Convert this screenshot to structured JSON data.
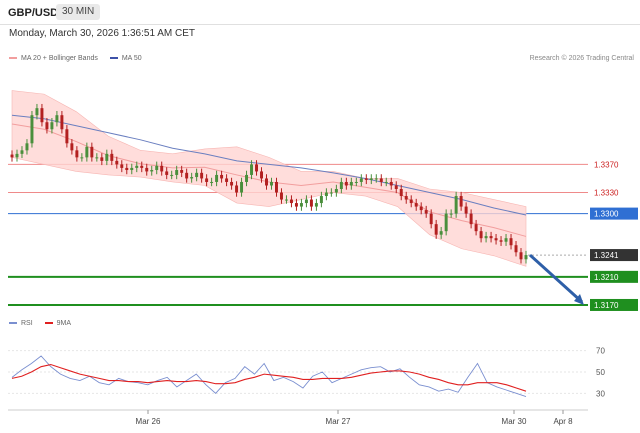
{
  "header": {
    "symbol": "GBP/USD",
    "timeframe": "30 MIN",
    "datetime": "Monday, March 30, 2026 1:36:51 AM CET"
  },
  "legend": {
    "ma20_label": "MA 20 + Bollinger Bands",
    "ma50_label": "MA 50",
    "credit": "Research © 2026 Trading Central"
  },
  "rsi_legend": {
    "rsi_label": "RSI",
    "ma_label": "9MA"
  },
  "colors": {
    "up_candle": "#4a8f3c",
    "down_candle": "#b32020",
    "bb_fill": "#ffd4d2",
    "ma20": "#f29e9e",
    "ma50": "#6a7fc0",
    "resistance": "#ef8a8a",
    "pivot": "#2f6fd3",
    "support": "#1f8f1f",
    "current": "#333333",
    "arrow": "#2e5fa8",
    "rsi": "#7a8fd0",
    "rsi_ma": "#e02020"
  },
  "chart_data": [
    {
      "type": "candlestick",
      "title": "GBP/USD",
      "y_range": [
        1.316,
        1.351
      ],
      "x_labels": [
        "Mar 26",
        "Mar 27",
        "Mar 30",
        "Apr 8"
      ],
      "levels": [
        {
          "value": 1.337,
          "label": "1.3370",
          "kind": "resistance"
        },
        {
          "value": 1.333,
          "label": "1.3330",
          "kind": "resistance"
        },
        {
          "value": 1.33,
          "label": "1.3300",
          "kind": "pivot"
        },
        {
          "value": 1.3241,
          "label": "1.3241",
          "kind": "current"
        },
        {
          "value": 1.321,
          "label": "1.3210",
          "kind": "support"
        },
        {
          "value": 1.317,
          "label": "1.3170",
          "kind": "support"
        }
      ],
      "projection": {
        "from": 1.3241,
        "to": 1.317
      },
      "close_series": [
        1.338,
        1.3385,
        1.339,
        1.34,
        1.344,
        1.345,
        1.343,
        1.342,
        1.343,
        1.344,
        1.342,
        1.34,
        1.339,
        1.338,
        1.338,
        1.3395,
        1.338,
        1.338,
        1.3375,
        1.3385,
        1.3375,
        1.337,
        1.3365,
        1.3362,
        1.3365,
        1.3368,
        1.3365,
        1.336,
        1.3362,
        1.3368,
        1.336,
        1.3355,
        1.3355,
        1.3362,
        1.3358,
        1.335,
        1.3352,
        1.3358,
        1.335,
        1.3345,
        1.3345,
        1.3355,
        1.335,
        1.3345,
        1.334,
        1.333,
        1.3345,
        1.3355,
        1.337,
        1.336,
        1.335,
        1.334,
        1.3345,
        1.333,
        1.332,
        1.332,
        1.3315,
        1.331,
        1.3315,
        1.332,
        1.331,
        1.3315,
        1.3325,
        1.333,
        1.333,
        1.3335,
        1.3345,
        1.334,
        1.3345,
        1.3345,
        1.335,
        1.3348,
        1.335,
        1.335,
        1.3345,
        1.3345,
        1.334,
        1.3335,
        1.3325,
        1.332,
        1.3315,
        1.331,
        1.3305,
        1.33,
        1.3285,
        1.327,
        1.3275,
        1.33,
        1.33,
        1.3325,
        1.331,
        1.33,
        1.3285,
        1.3275,
        1.3265,
        1.3268,
        1.3265,
        1.3262,
        1.326,
        1.3265,
        1.3255,
        1.3245,
        1.3235,
        1.3241
      ],
      "ma50": [
        1.344,
        1.3435,
        1.3425,
        1.3415,
        1.3405,
        1.3393,
        1.3385,
        1.3375,
        1.337,
        1.3365,
        1.3358,
        1.335,
        1.334,
        1.333,
        1.332,
        1.3308,
        1.3298
      ],
      "bb_upper": [
        1.3475,
        1.347,
        1.3445,
        1.341,
        1.339,
        1.3385,
        1.3392,
        1.3395,
        1.338,
        1.336,
        1.336,
        1.335,
        1.335,
        1.3335,
        1.333,
        1.332,
        1.331
      ],
      "bb_lower": [
        1.338,
        1.337,
        1.336,
        1.3355,
        1.3352,
        1.3345,
        1.334,
        1.3315,
        1.331,
        1.332,
        1.333,
        1.3325,
        1.331,
        1.327,
        1.325,
        1.324,
        1.3225
      ]
    },
    {
      "type": "line",
      "title": "RSI",
      "y_range": [
        20,
        80
      ],
      "y_ticks": [
        30,
        50,
        70
      ],
      "series": [
        {
          "name": "RSI",
          "values": [
            45,
            52,
            58,
            65,
            55,
            48,
            44,
            42,
            46,
            40,
            38,
            44,
            41,
            40,
            38,
            42,
            45,
            36,
            42,
            48,
            38,
            30,
            40,
            44,
            55,
            48,
            58,
            42,
            45,
            41,
            35,
            46,
            50,
            40,
            44,
            48,
            52,
            54,
            55,
            50,
            53,
            45,
            38,
            36,
            32,
            34,
            31,
            45,
            58,
            40,
            36,
            33,
            30,
            27
          ]
        },
        {
          "name": "9MA",
          "values": [
            44,
            46,
            50,
            55,
            57,
            54,
            51,
            48,
            46,
            44,
            42,
            42,
            41,
            41,
            40,
            41,
            42,
            41,
            41,
            42,
            41,
            39,
            39,
            40,
            43,
            45,
            48,
            47,
            46,
            45,
            43,
            43,
            44,
            44,
            44,
            45,
            47,
            49,
            50,
            51,
            51,
            50,
            48,
            45,
            43,
            40,
            38,
            38,
            40,
            40,
            40,
            38,
            35,
            32
          ]
        }
      ]
    }
  ]
}
